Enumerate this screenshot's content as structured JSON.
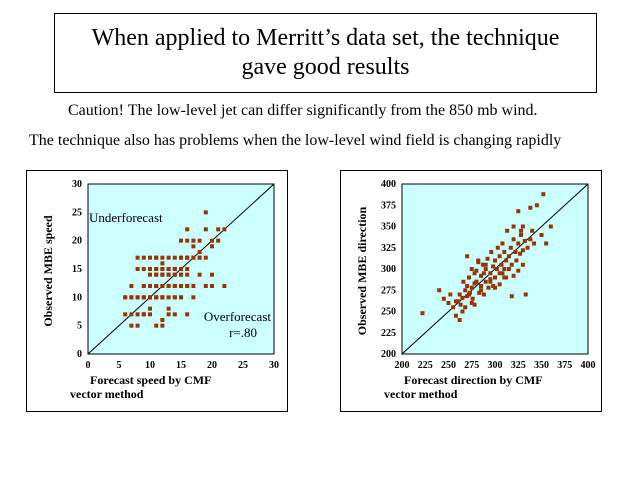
{
  "title": {
    "line1": "When applied to Merritt’s data set, the technique",
    "line2": "gave good results"
  },
  "caution": {
    "line1": "Caution!  The low-level jet can differ significantly from the 850 mb wind.",
    "line2": "The technique also has problems when the low-level wind field is changing rapidly"
  },
  "colors": {
    "plot_bg": "#ccffff",
    "marker": "#993300",
    "line": "#000000"
  },
  "chart_data": [
    {
      "type": "scatter",
      "ylabel": "Observed MBE speed",
      "xlabel_line1": "Forecast speed by CMF",
      "xlabel_line2": "vector method",
      "xlim": [
        0,
        30
      ],
      "ylim": [
        0,
        30
      ],
      "xticks": [
        "0",
        "5",
        "10",
        "15",
        "20",
        "25",
        "30"
      ],
      "yticks": [
        "0",
        "5",
        "10",
        "15",
        "20",
        "25",
        "30"
      ],
      "diagonal": true,
      "annotations": [
        "Underforecast",
        "Overforecast",
        "r=.80"
      ],
      "x": [
        6,
        7,
        7,
        8,
        8,
        9,
        9,
        10,
        10,
        10,
        11,
        11,
        11,
        11,
        12,
        12,
        12,
        12,
        12,
        13,
        13,
        13,
        13,
        14,
        14,
        14,
        14,
        15,
        15,
        15,
        15,
        15,
        16,
        16,
        16,
        16,
        17,
        17,
        17,
        18,
        18,
        18,
        19,
        19,
        20,
        20,
        21,
        22,
        6,
        7,
        8,
        9,
        10,
        11,
        12,
        12,
        13,
        14,
        15,
        16,
        8,
        9,
        10,
        11,
        12,
        13,
        14,
        15,
        16,
        17,
        18,
        11,
        12,
        13,
        14,
        15,
        16,
        9,
        10,
        11,
        12,
        13,
        14,
        15,
        16,
        17,
        19,
        20,
        22,
        7,
        10,
        11,
        12,
        15,
        17,
        21,
        19,
        8,
        9,
        10,
        13,
        14,
        16,
        11,
        12,
        13,
        14,
        15,
        18,
        20,
        6,
        7,
        8,
        9,
        10,
        11,
        12,
        9,
        10,
        11
      ],
      "y": [
        10,
        7,
        12,
        10,
        15,
        10,
        12,
        10,
        12,
        14,
        10,
        12,
        14,
        17,
        10,
        12,
        14,
        15,
        16,
        10,
        12,
        14,
        15,
        10,
        12,
        14,
        15,
        12,
        14,
        15,
        17,
        20,
        14,
        17,
        20,
        22,
        17,
        19,
        20,
        17,
        18,
        20,
        22,
        25,
        19,
        20,
        22,
        22,
        7,
        5,
        5,
        7,
        8,
        5,
        5,
        6,
        8,
        10,
        10,
        12,
        17,
        17,
        17,
        17,
        17,
        17,
        17,
        17,
        17,
        17,
        17,
        15,
        15,
        15,
        15,
        15,
        15,
        12,
        12,
        12,
        12,
        12,
        12,
        12,
        12,
        12,
        12,
        12,
        12,
        10,
        10,
        10,
        10,
        10,
        10,
        20,
        17,
        7,
        7,
        7,
        7,
        7,
        7,
        14,
        14,
        14,
        14,
        14,
        14,
        14,
        10,
        10,
        10,
        10,
        10,
        10,
        10,
        15,
        15,
        15
      ]
    },
    {
      "type": "scatter",
      "ylabel": "Observed MBE direction",
      "xlabel_line1": "Forecast direction by CMF",
      "xlabel_line2": "vector method",
      "xlim": [
        200,
        400
      ],
      "ylim": [
        200,
        400
      ],
      "xticks": [
        "200",
        "225",
        "250",
        "275",
        "300",
        "325",
        "350",
        "375",
        "400"
      ],
      "yticks": [
        "200",
        "225",
        "250",
        "275",
        "300",
        "325",
        "350",
        "375",
        "400"
      ],
      "diagonal": true,
      "x": [
        222,
        240,
        245,
        250,
        252,
        255,
        258,
        260,
        262,
        263,
        265,
        266,
        268,
        270,
        270,
        272,
        273,
        275,
        275,
        276,
        278,
        278,
        280,
        280,
        282,
        283,
        285,
        285,
        287,
        288,
        290,
        290,
        292,
        293,
        295,
        296,
        298,
        300,
        300,
        302,
        303,
        305,
        305,
        307,
        308,
        310,
        310,
        312,
        313,
        315,
        315,
        317,
        318,
        320,
        320,
        322,
        323,
        325,
        325,
        327,
        328,
        330,
        330,
        332,
        335,
        338,
        340,
        342,
        345,
        350,
        352,
        355,
        360,
        262,
        268,
        275,
        280,
        285,
        290,
        295,
        300,
        305,
        310,
        315,
        320,
        325,
        330,
        258,
        265,
        272,
        278,
        288,
        298,
        308,
        318,
        328,
        338,
        270,
        282,
        295,
        312,
        333
      ],
      "y": [
        248,
        275,
        265,
        260,
        270,
        255,
        245,
        262,
        270,
        258,
        266,
        285,
        275,
        268,
        280,
        290,
        272,
        278,
        300,
        265,
        283,
        295,
        285,
        298,
        310,
        272,
        280,
        292,
        305,
        295,
        285,
        300,
        312,
        278,
        295,
        320,
        303,
        290,
        310,
        300,
        325,
        295,
        315,
        305,
        330,
        300,
        320,
        310,
        345,
        300,
        315,
        325,
        305,
        335,
        350,
        320,
        310,
        330,
        368,
        318,
        340,
        322,
        350,
        333,
        325,
        372,
        345,
        330,
        375,
        340,
        388,
        330,
        350,
        240,
        255,
        260,
        285,
        275,
        305,
        285,
        278,
        282,
        290,
        300,
        292,
        298,
        305,
        262,
        250,
        270,
        258,
        270,
        280,
        295,
        268,
        345,
        335,
        315,
        308,
        288,
        290,
        270
      ]
    }
  ]
}
